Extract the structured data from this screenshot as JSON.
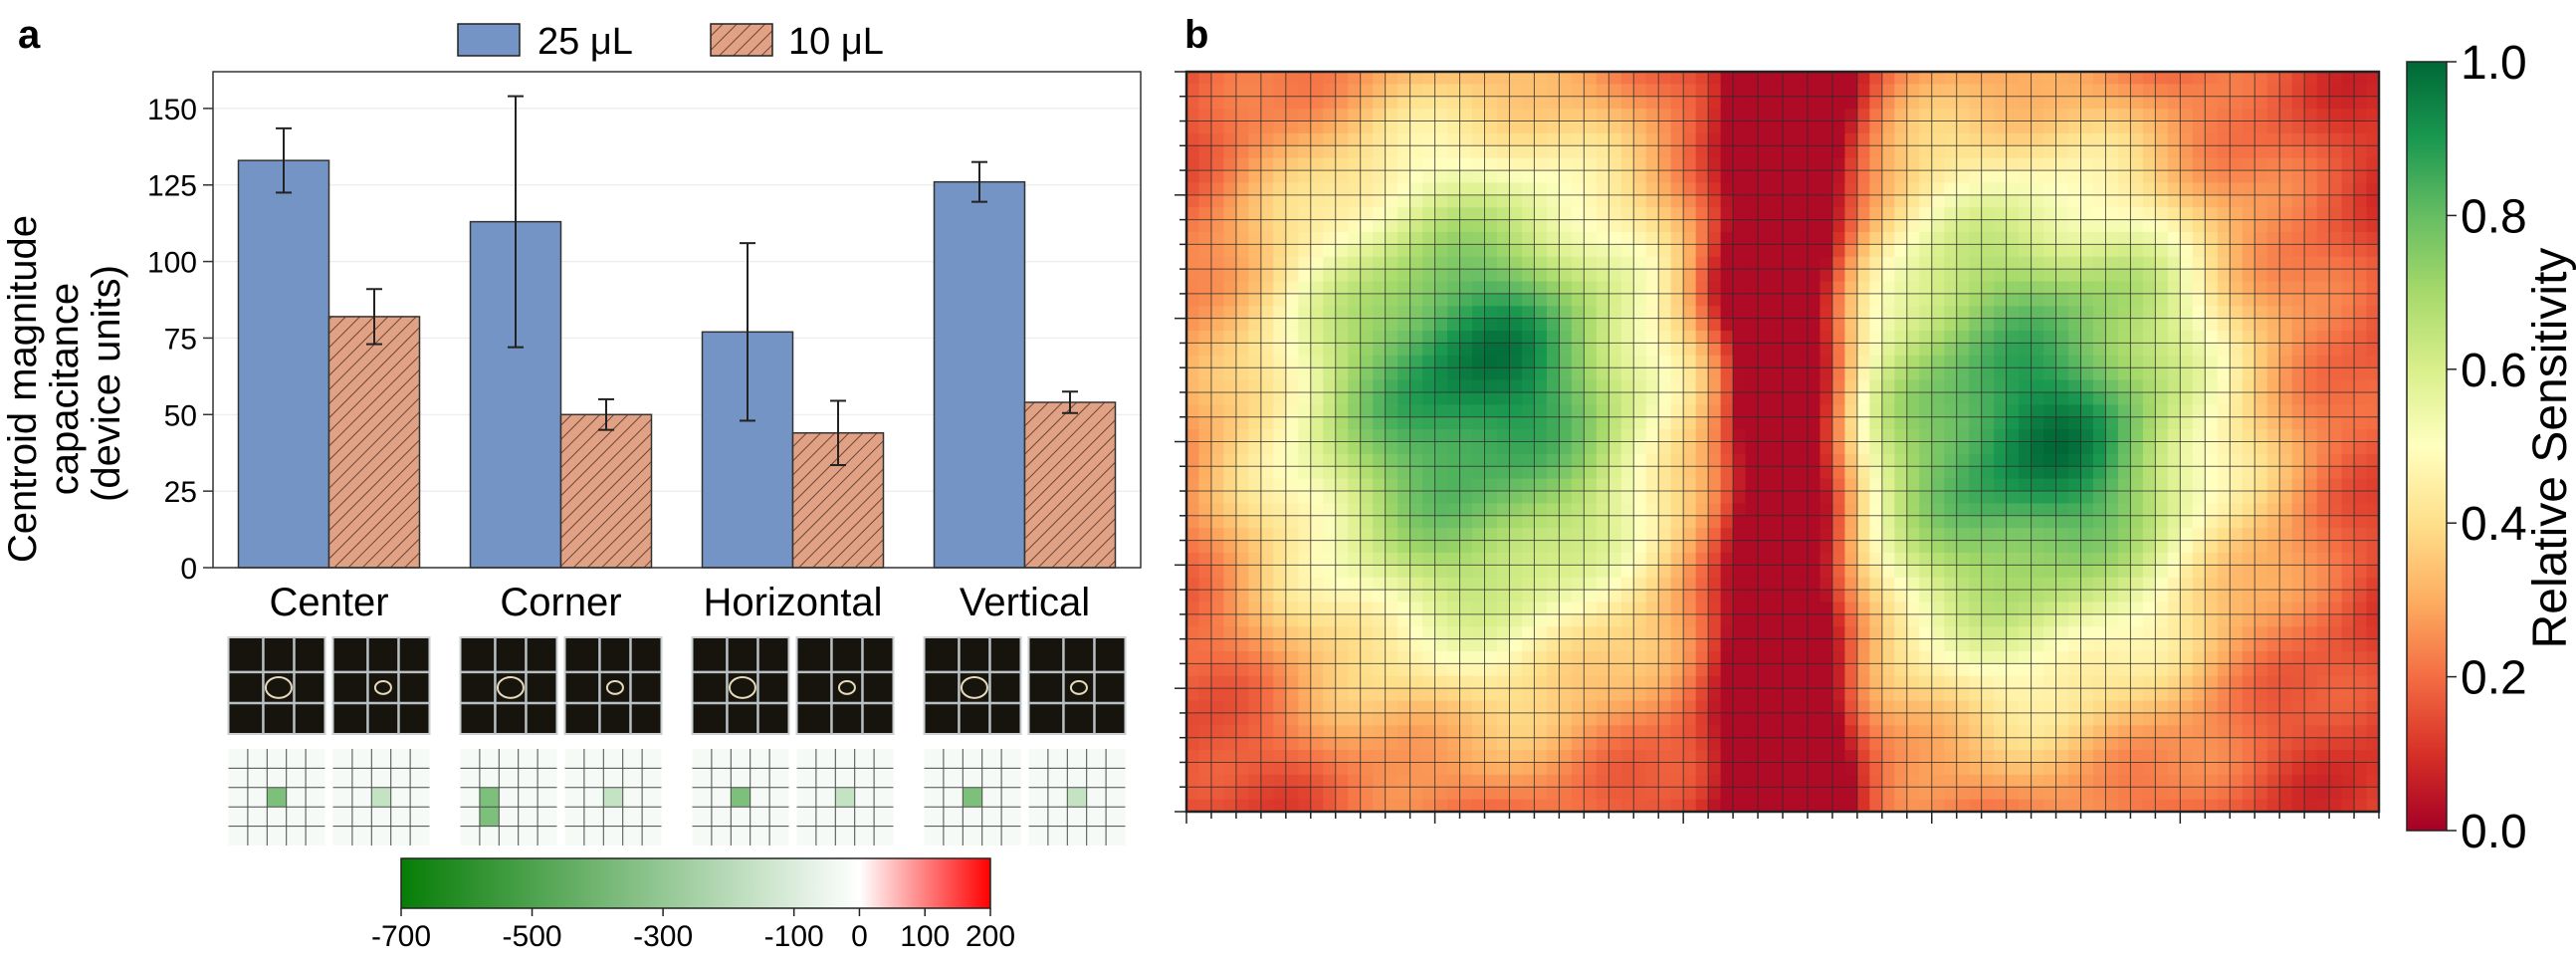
{
  "panel_a": {
    "label": "a",
    "legend": [
      "25 μL",
      "10 μL"
    ],
    "ylabel_lines": [
      "Centroid magnitude",
      "capacitance",
      "(device units)"
    ]
  },
  "panel_b": {
    "label": "b",
    "colorbar_label": "Relative Sensitivity"
  },
  "bottom_colorbar": {
    "ticks": [
      "-700",
      "-500",
      "-300",
      "-100",
      "0",
      "100",
      "200"
    ]
  },
  "colors": {
    "bar_25": "#7394c4",
    "bar_10": "#e0a184",
    "hatch": "#6e4434",
    "cmap_rdylgn": [
      "#a50026",
      "#d73027",
      "#f46d43",
      "#fdae61",
      "#fee08b",
      "#ffffbf",
      "#d9ef8b",
      "#a6d96a",
      "#66bd63",
      "#1a9850",
      "#006837"
    ]
  },
  "chart_data": [
    {
      "type": "bar",
      "panel": "a",
      "categories": [
        "Center",
        "Corner",
        "Horizontal",
        "Vertical"
      ],
      "series": [
        {
          "name": "25 μL",
          "values": [
            133,
            113,
            77,
            126
          ],
          "errors": [
            10.5,
            41,
            29,
            6.5
          ]
        },
        {
          "name": "10 μL",
          "values": [
            82,
            50,
            44,
            54
          ],
          "errors": [
            9,
            5,
            10.5,
            3.5
          ]
        }
      ],
      "ylabel": "Centroid magnitude capacitance (device units)",
      "ylim": [
        0,
        162
      ],
      "yticks": [
        0,
        25,
        50,
        75,
        100,
        125,
        150
      ],
      "grid": true,
      "legend_position": "top-center"
    },
    {
      "type": "heatmap",
      "panel": "b",
      "colorbar_label": "Relative Sensitivity",
      "colorbar_ticks": [
        "0.0",
        "0.2",
        "0.4",
        "0.6",
        "0.8",
        "1.0"
      ],
      "colorbar_range": [
        0,
        1
      ],
      "colormap": "RdYlGn",
      "grid_cols": 48,
      "grid_rows": 30,
      "description": "green (high) in two central lobes; red (low) in a central vertical stripe and at the outer edges"
    }
  ]
}
